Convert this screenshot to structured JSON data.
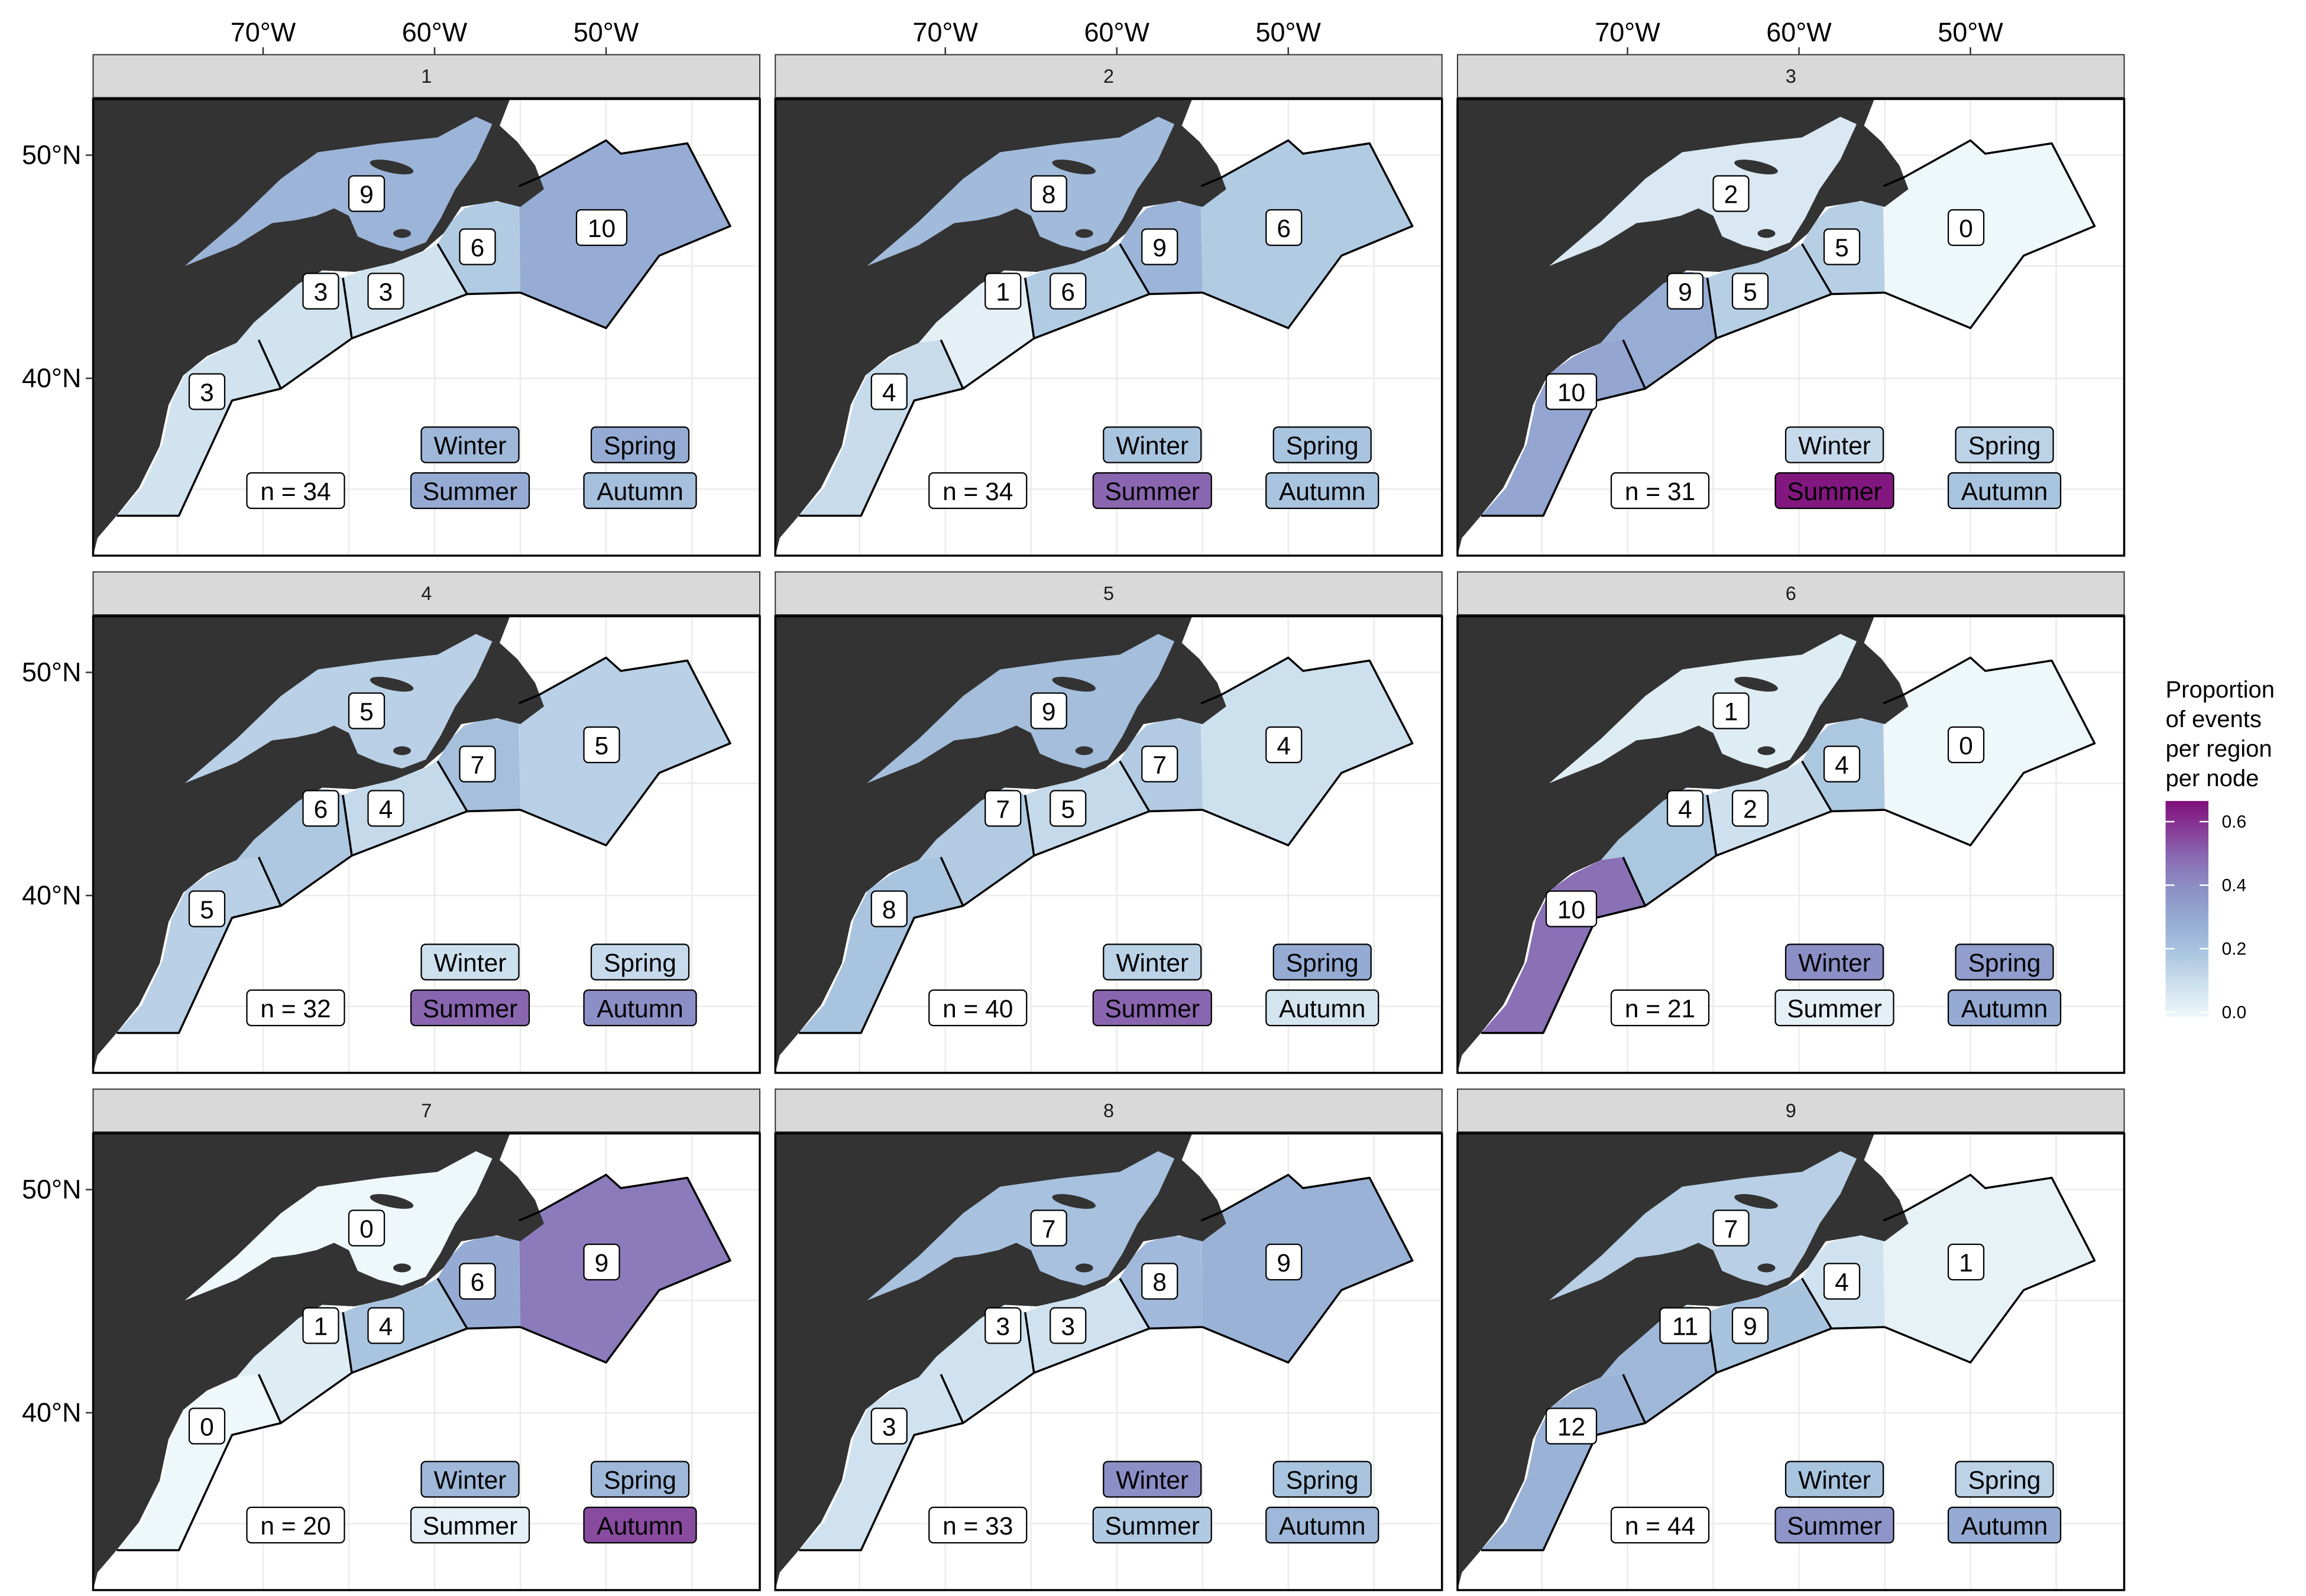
{
  "chart_data": {
    "type": "choropleth",
    "x_tick_labels": [
      "70°W",
      "60°W",
      "50°W"
    ],
    "y_tick_labels": [
      "50°N",
      "40°N"
    ],
    "grid": true,
    "legend": {
      "title_lines": [
        "Proportion",
        "of events",
        "per region",
        "per node"
      ],
      "ticks": [
        {
          "value": 0.6,
          "label": "0.6"
        },
        {
          "value": 0.4,
          "label": "0.4"
        },
        {
          "value": 0.2,
          "label": "0.2"
        },
        {
          "value": 0.0,
          "label": "0.0"
        }
      ],
      "range": [
        0,
        0.665
      ],
      "placement": "right",
      "colorscale": [
        {
          "value": 0.0,
          "color": "#eef7fa"
        },
        {
          "value": 0.1,
          "color": "#cde0ee"
        },
        {
          "value": 0.2,
          "color": "#a9c4df"
        },
        {
          "value": 0.3,
          "color": "#95abd3"
        },
        {
          "value": 0.4,
          "color": "#8c8fc5"
        },
        {
          "value": 0.5,
          "color": "#8a66b0"
        },
        {
          "value": 0.6,
          "color": "#85308f"
        },
        {
          "value": 0.665,
          "color": "#810f7c"
        }
      ]
    },
    "land_color": "#333333",
    "region_counts_order": [
      "gulf",
      "west",
      "central",
      "cabot",
      "east",
      "south"
    ],
    "facets": [
      {
        "label": "1",
        "n": 34,
        "n_label": "n = 34",
        "counts": [
          9,
          3,
          3,
          6,
          10,
          3
        ],
        "seasons": [
          {
            "name": "Winter",
            "value": 0.25
          },
          {
            "name": "Spring",
            "value": 0.3
          },
          {
            "name": "Summer",
            "value": 0.3
          },
          {
            "name": "Autumn",
            "value": 0.22
          }
        ]
      },
      {
        "label": "2",
        "n": 34,
        "n_label": "n = 34",
        "counts": [
          8,
          1,
          6,
          9,
          6,
          4
        ],
        "seasons": [
          {
            "name": "Winter",
            "value": 0.2
          },
          {
            "name": "Spring",
            "value": 0.2
          },
          {
            "name": "Summer",
            "value": 0.5
          },
          {
            "name": "Autumn",
            "value": 0.2
          }
        ]
      },
      {
        "label": "3",
        "n": 31,
        "n_label": "n = 31",
        "counts": [
          2,
          9,
          5,
          5,
          0,
          10
        ],
        "seasons": [
          {
            "name": "Winter",
            "value": 0.12
          },
          {
            "name": "Spring",
            "value": 0.15
          },
          {
            "name": "Summer",
            "value": 0.65
          },
          {
            "name": "Autumn",
            "value": 0.2
          }
        ]
      },
      {
        "label": "4",
        "n": 32,
        "n_label": "n = 32",
        "counts": [
          5,
          6,
          4,
          7,
          5,
          5
        ],
        "seasons": [
          {
            "name": "Winter",
            "value": 0.1
          },
          {
            "name": "Spring",
            "value": 0.12
          },
          {
            "name": "Summer",
            "value": 0.5
          },
          {
            "name": "Autumn",
            "value": 0.4
          }
        ]
      },
      {
        "label": "5",
        "n": 40,
        "n_label": "n = 40",
        "counts": [
          9,
          7,
          5,
          7,
          4,
          8
        ],
        "seasons": [
          {
            "name": "Winter",
            "value": 0.15
          },
          {
            "name": "Spring",
            "value": 0.3
          },
          {
            "name": "Summer",
            "value": 0.5
          },
          {
            "name": "Autumn",
            "value": 0.08
          }
        ]
      },
      {
        "label": "6",
        "n": 21,
        "n_label": "n = 21",
        "counts": [
          1,
          4,
          2,
          4,
          0,
          10
        ],
        "seasons": [
          {
            "name": "Winter",
            "value": 0.4
          },
          {
            "name": "Spring",
            "value": 0.35
          },
          {
            "name": "Summer",
            "value": 0.03
          },
          {
            "name": "Autumn",
            "value": 0.3
          }
        ]
      },
      {
        "label": "7",
        "n": 20,
        "n_label": "n = 20",
        "counts": [
          0,
          1,
          4,
          6,
          9,
          0
        ],
        "seasons": [
          {
            "name": "Winter",
            "value": 0.25
          },
          {
            "name": "Spring",
            "value": 0.25
          },
          {
            "name": "Summer",
            "value": 0.03
          },
          {
            "name": "Autumn",
            "value": 0.55
          }
        ]
      },
      {
        "label": "8",
        "n": 33,
        "n_label": "n = 33",
        "counts": [
          7,
          3,
          3,
          8,
          9,
          3
        ],
        "seasons": [
          {
            "name": "Winter",
            "value": 0.4
          },
          {
            "name": "Spring",
            "value": 0.2
          },
          {
            "name": "Summer",
            "value": 0.18
          },
          {
            "name": "Autumn",
            "value": 0.25
          }
        ]
      },
      {
        "label": "9",
        "n": 44,
        "n_label": "n = 44",
        "counts": [
          7,
          11,
          9,
          4,
          1,
          12
        ],
        "seasons": [
          {
            "name": "Winter",
            "value": 0.2
          },
          {
            "name": "Spring",
            "value": 0.15
          },
          {
            "name": "Summer",
            "value": 0.38
          },
          {
            "name": "Autumn",
            "value": 0.3
          }
        ]
      }
    ]
  }
}
